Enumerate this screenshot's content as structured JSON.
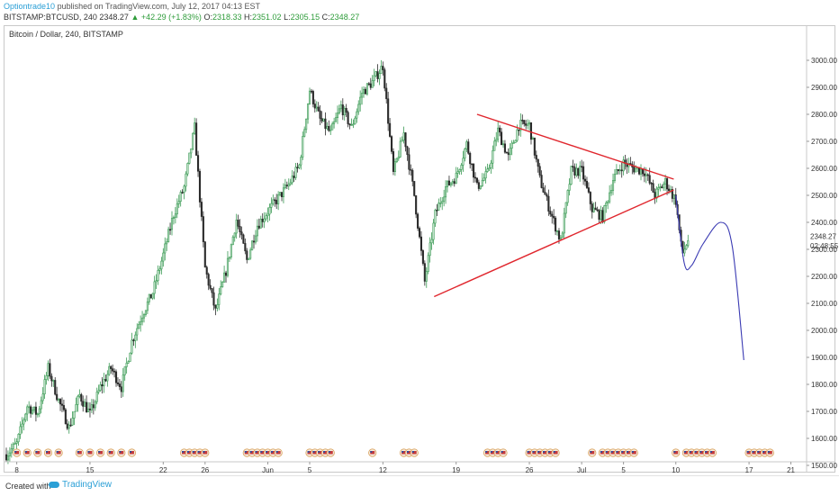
{
  "header": {
    "author": "Optiontrade10",
    "published_text": "published on TradingView.com, July 12, 2017 04:13 EST",
    "symbol": "BITSTAMP:BTCUSD, 240",
    "last": "2348.27",
    "change_arrow": "▲",
    "change": "+42.29 (+1.83%)",
    "o_label": "O:",
    "o_value": "2318.33",
    "h_label": "H:",
    "h_value": "2351.02",
    "l_label": "L:",
    "l_value": "2305.15",
    "c_label": "C:",
    "c_value": "2348.27"
  },
  "series_title": "Bitcoin / Dollar, 240, BITSTAMP",
  "footer": {
    "created_with": "Created with",
    "brand": "TradingView"
  },
  "colors": {
    "up": "#3a9a54",
    "down": "#2b2b2b",
    "trendline": "#e0272e",
    "projection": "#3b3bb3",
    "accent": "#2a9fd6"
  },
  "chart_data": {
    "type": "candlestick",
    "title": "Bitcoin / Dollar, 240, BITSTAMP",
    "ylim": [
      1470,
      3050
    ],
    "y_ticks": [
      1500,
      1600,
      1700,
      1800,
      1900,
      2000,
      2100,
      2200,
      2300,
      2400,
      2500,
      2600,
      2700,
      2800,
      2900,
      3000
    ],
    "y_tick_labels": [
      "1500.00",
      "1600.00",
      "1700.00",
      "1800.00",
      "1900.00",
      "2000.00",
      "2100.00",
      "2200.00",
      "2300.00",
      "2400.00",
      "2500.00",
      "2600.00",
      "2700.00",
      "2800.00",
      "2900.00",
      "3000.00"
    ],
    "x_range": [
      0,
      76.5
    ],
    "x_ticks": [
      {
        "day": 1.0,
        "label": "8"
      },
      {
        "day": 8.0,
        "label": "15"
      },
      {
        "day": 15.0,
        "label": "22"
      },
      {
        "day": 19.0,
        "label": "26"
      },
      {
        "day": 25.0,
        "label": "Jun"
      },
      {
        "day": 29.0,
        "label": "5"
      },
      {
        "day": 36.0,
        "label": "12"
      },
      {
        "day": 43.0,
        "label": "19"
      },
      {
        "day": 50.0,
        "label": "26"
      },
      {
        "day": 55.0,
        "label": "Jul"
      },
      {
        "day": 59.0,
        "label": "5"
      },
      {
        "day": 64.0,
        "label": "10"
      },
      {
        "day": 71.0,
        "label": "17"
      },
      {
        "day": 75.0,
        "label": "21"
      }
    ],
    "price_labels": [
      {
        "value": 2348.27,
        "text": "2348.27"
      },
      {
        "value": 2313,
        "text": "02:48:55"
      }
    ],
    "close_anchors": [
      [
        0,
        1540
      ],
      [
        1,
        1580
      ],
      [
        2,
        1720
      ],
      [
        3,
        1690
      ],
      [
        4,
        1860
      ],
      [
        5,
        1740
      ],
      [
        6,
        1640
      ],
      [
        7,
        1760
      ],
      [
        8,
        1690
      ],
      [
        9,
        1790
      ],
      [
        10,
        1860
      ],
      [
        11,
        1790
      ],
      [
        12,
        1960
      ],
      [
        13,
        2060
      ],
      [
        14,
        2140
      ],
      [
        15,
        2280
      ],
      [
        16,
        2430
      ],
      [
        17,
        2530
      ],
      [
        18,
        2750
      ],
      [
        19,
        2230
      ],
      [
        20,
        2070
      ],
      [
        21,
        2220
      ],
      [
        22,
        2410
      ],
      [
        23,
        2260
      ],
      [
        24,
        2390
      ],
      [
        25,
        2440
      ],
      [
        26,
        2490
      ],
      [
        27,
        2540
      ],
      [
        28,
        2610
      ],
      [
        29,
        2890
      ],
      [
        30,
        2780
      ],
      [
        31,
        2730
      ],
      [
        32,
        2830
      ],
      [
        33,
        2750
      ],
      [
        34,
        2880
      ],
      [
        35,
        2920
      ],
      [
        36,
        2980
      ],
      [
        37,
        2580
      ],
      [
        38,
        2730
      ],
      [
        39,
        2500
      ],
      [
        40,
        2180
      ],
      [
        41,
        2430
      ],
      [
        42,
        2530
      ],
      [
        43,
        2570
      ],
      [
        44,
        2690
      ],
      [
        45,
        2530
      ],
      [
        46,
        2580
      ],
      [
        47,
        2740
      ],
      [
        48,
        2640
      ],
      [
        49,
        2760
      ],
      [
        50,
        2760
      ],
      [
        51,
        2560
      ],
      [
        52,
        2440
      ],
      [
        53,
        2330
      ],
      [
        54,
        2590
      ],
      [
        55,
        2590
      ],
      [
        56,
        2450
      ],
      [
        57,
        2420
      ],
      [
        58,
        2560
      ],
      [
        59,
        2620
      ],
      [
        60,
        2600
      ],
      [
        61,
        2590
      ],
      [
        62,
        2500
      ],
      [
        63,
        2550
      ],
      [
        64,
        2480
      ],
      [
        64.6,
        2280
      ],
      [
        65.3,
        2348
      ]
    ],
    "triangle_upper": [
      [
        45.0,
        2800
      ],
      [
        63.8,
        2560
      ]
    ],
    "triangle_lower": [
      [
        40.9,
        2125
      ],
      [
        63.8,
        2520
      ]
    ],
    "projection": [
      [
        64.0,
        2500
      ],
      [
        64.8,
        2250
      ],
      [
        65.5,
        2240
      ],
      [
        66.6,
        2320
      ],
      [
        68.3,
        2400
      ],
      [
        69.4,
        2310
      ],
      [
        70.5,
        1890
      ]
    ],
    "event_marker_days": [
      1,
      2,
      3,
      4,
      5,
      7,
      8,
      9,
      10,
      11,
      12,
      17,
      17.5,
      18,
      18.5,
      19,
      23,
      23.5,
      24,
      24.5,
      25,
      25.5,
      26,
      29,
      29.5,
      30,
      30.5,
      31,
      35,
      38,
      38.5,
      39,
      46,
      46.5,
      47,
      47.5,
      50,
      50.5,
      51,
      51.5,
      52,
      52.5,
      56,
      57,
      57.5,
      58,
      58.5,
      59,
      59.5,
      60,
      64,
      65,
      65.5,
      66,
      66.5,
      67,
      67.5,
      71,
      71.5,
      72,
      72.5,
      73
    ]
  }
}
